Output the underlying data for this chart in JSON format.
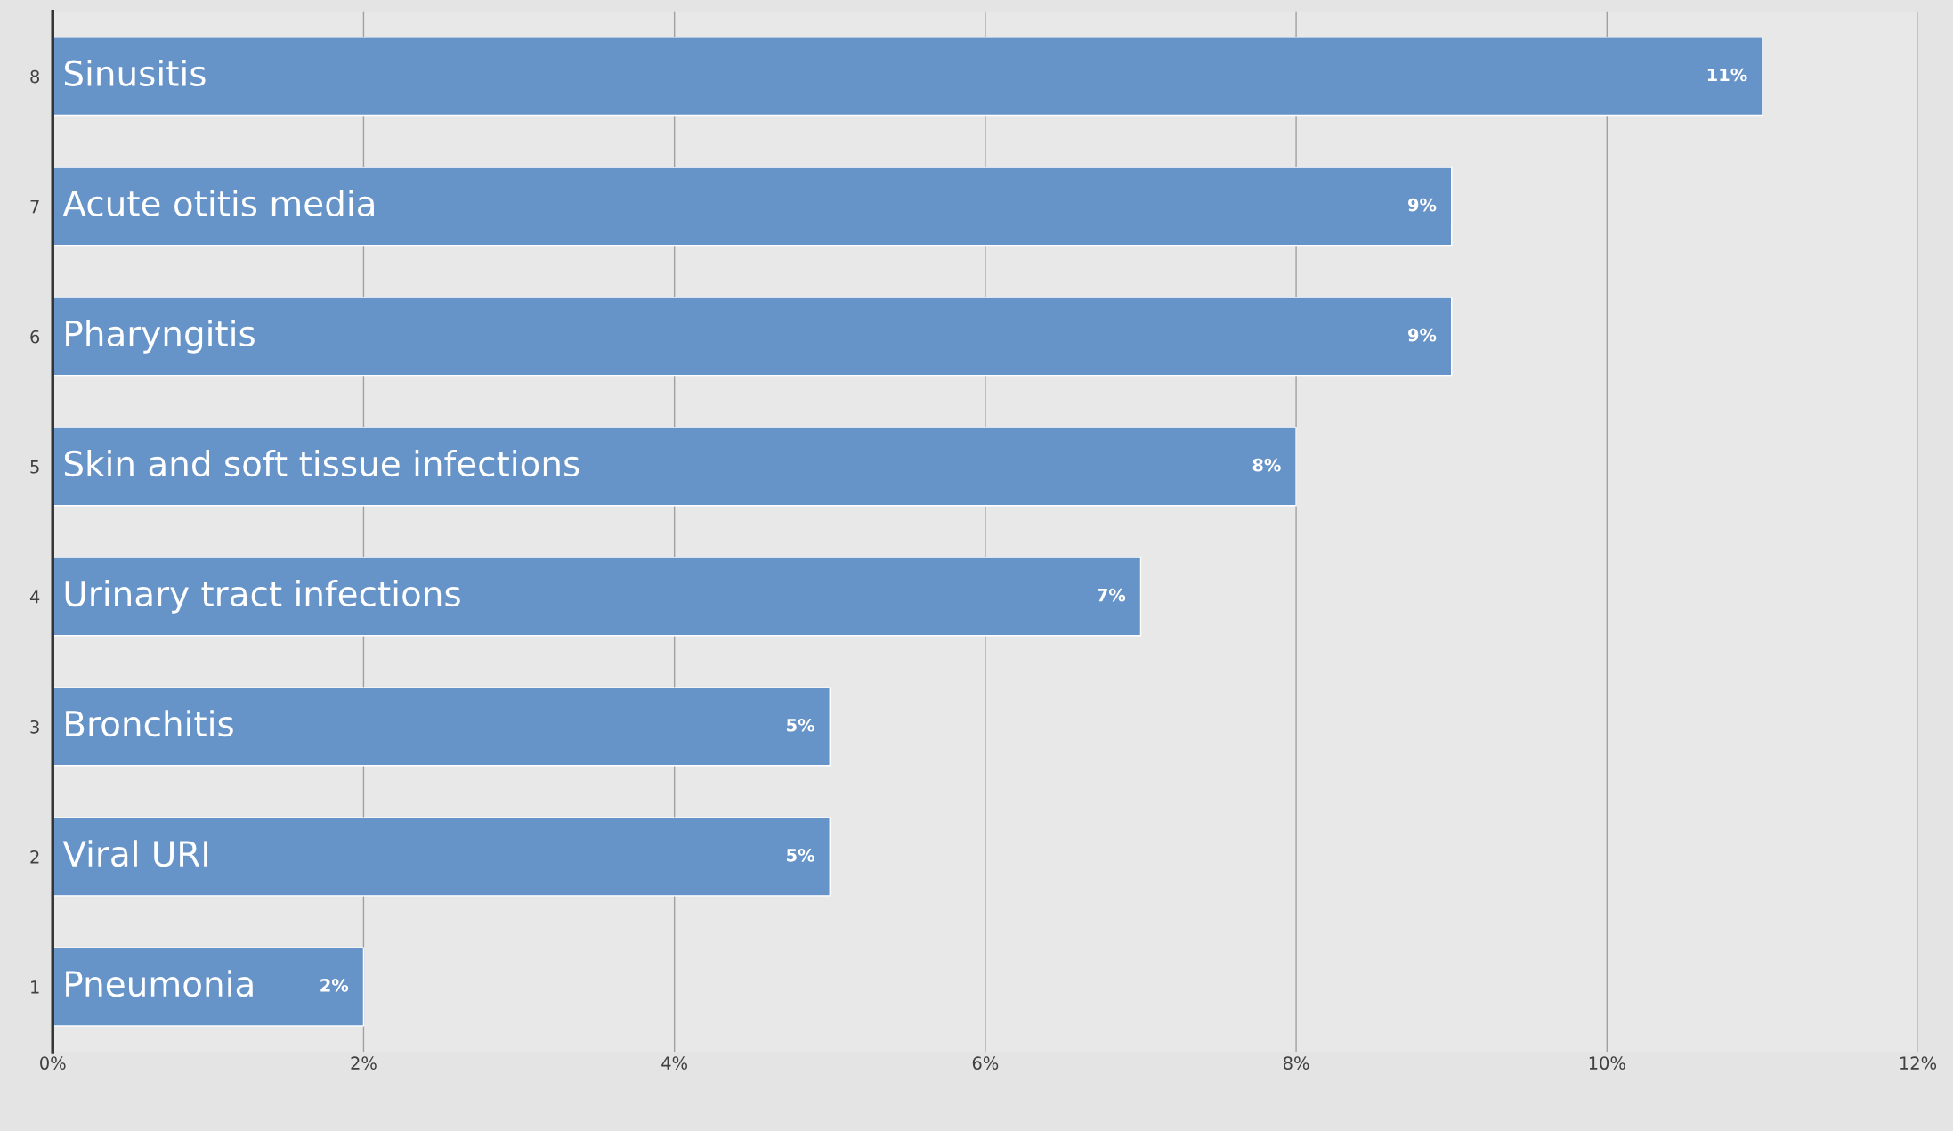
{
  "chart_data": {
    "type": "bar",
    "orientation": "horizontal",
    "categories": [
      "8",
      "7",
      "6",
      "5",
      "4",
      "3",
      "2",
      "1"
    ],
    "values": [
      11,
      9,
      9,
      8,
      7,
      5,
      5,
      2
    ],
    "value_labels": [
      "11%",
      "9%",
      "9%",
      "8%",
      "7%",
      "5%",
      "5%",
      "2%"
    ],
    "color": "#6794c8",
    "xlim": [
      0,
      12
    ],
    "xticks": [
      {
        "value": 0,
        "label": "0%"
      },
      {
        "value": 2,
        "label": "2%"
      },
      {
        "value": 4,
        "label": "4%"
      },
      {
        "value": 6,
        "label": "6%"
      },
      {
        "value": 8,
        "label": "8%"
      },
      {
        "value": 10,
        "label": "10%"
      },
      {
        "value": 12,
        "label": "12%"
      }
    ],
    "grid": "x",
    "annotations": [
      "Sinusitis",
      "Acute otitis media",
      "Pharyngitis",
      "Skin and soft tissue infections",
      "Urinary tract infections",
      "Bronchitis",
      "Viral URI",
      "Pneumonia"
    ]
  }
}
